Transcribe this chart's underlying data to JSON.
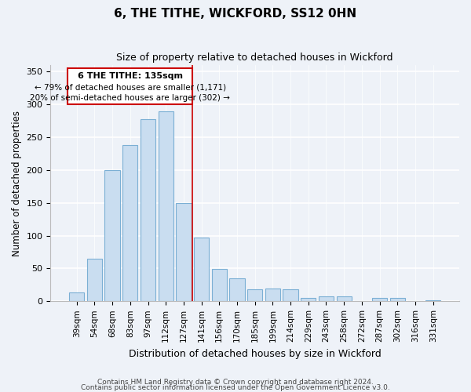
{
  "title": "6, THE TITHE, WICKFORD, SS12 0HN",
  "subtitle": "Size of property relative to detached houses in Wickford",
  "xlabel": "Distribution of detached houses by size in Wickford",
  "ylabel": "Number of detached properties",
  "bar_labels": [
    "39sqm",
    "54sqm",
    "68sqm",
    "83sqm",
    "97sqm",
    "112sqm",
    "127sqm",
    "141sqm",
    "156sqm",
    "170sqm",
    "185sqm",
    "199sqm",
    "214sqm",
    "229sqm",
    "243sqm",
    "258sqm",
    "272sqm",
    "287sqm",
    "302sqm",
    "316sqm",
    "331sqm"
  ],
  "bar_values": [
    13,
    65,
    200,
    238,
    278,
    290,
    150,
    97,
    49,
    35,
    18,
    20,
    18,
    5,
    8,
    8,
    0,
    5,
    5,
    0,
    1
  ],
  "bar_color": "#c9ddf0",
  "bar_edge_color": "#7bafd4",
  "highlight_bar_index": 6,
  "highlight_line_color": "#cc0000",
  "annotation_title": "6 THE TITHE: 135sqm",
  "annotation_line1": "← 79% of detached houses are smaller (1,171)",
  "annotation_line2": "20% of semi-detached houses are larger (302) →",
  "annotation_box_color": "#ffffff",
  "annotation_box_edge": "#cc0000",
  "ylim": [
    0,
    360
  ],
  "yticks": [
    0,
    50,
    100,
    150,
    200,
    250,
    300,
    350
  ],
  "footer_line1": "Contains HM Land Registry data © Crown copyright and database right 2024.",
  "footer_line2": "Contains public sector information licensed under the Open Government Licence v3.0.",
  "background_color": "#eef2f8"
}
